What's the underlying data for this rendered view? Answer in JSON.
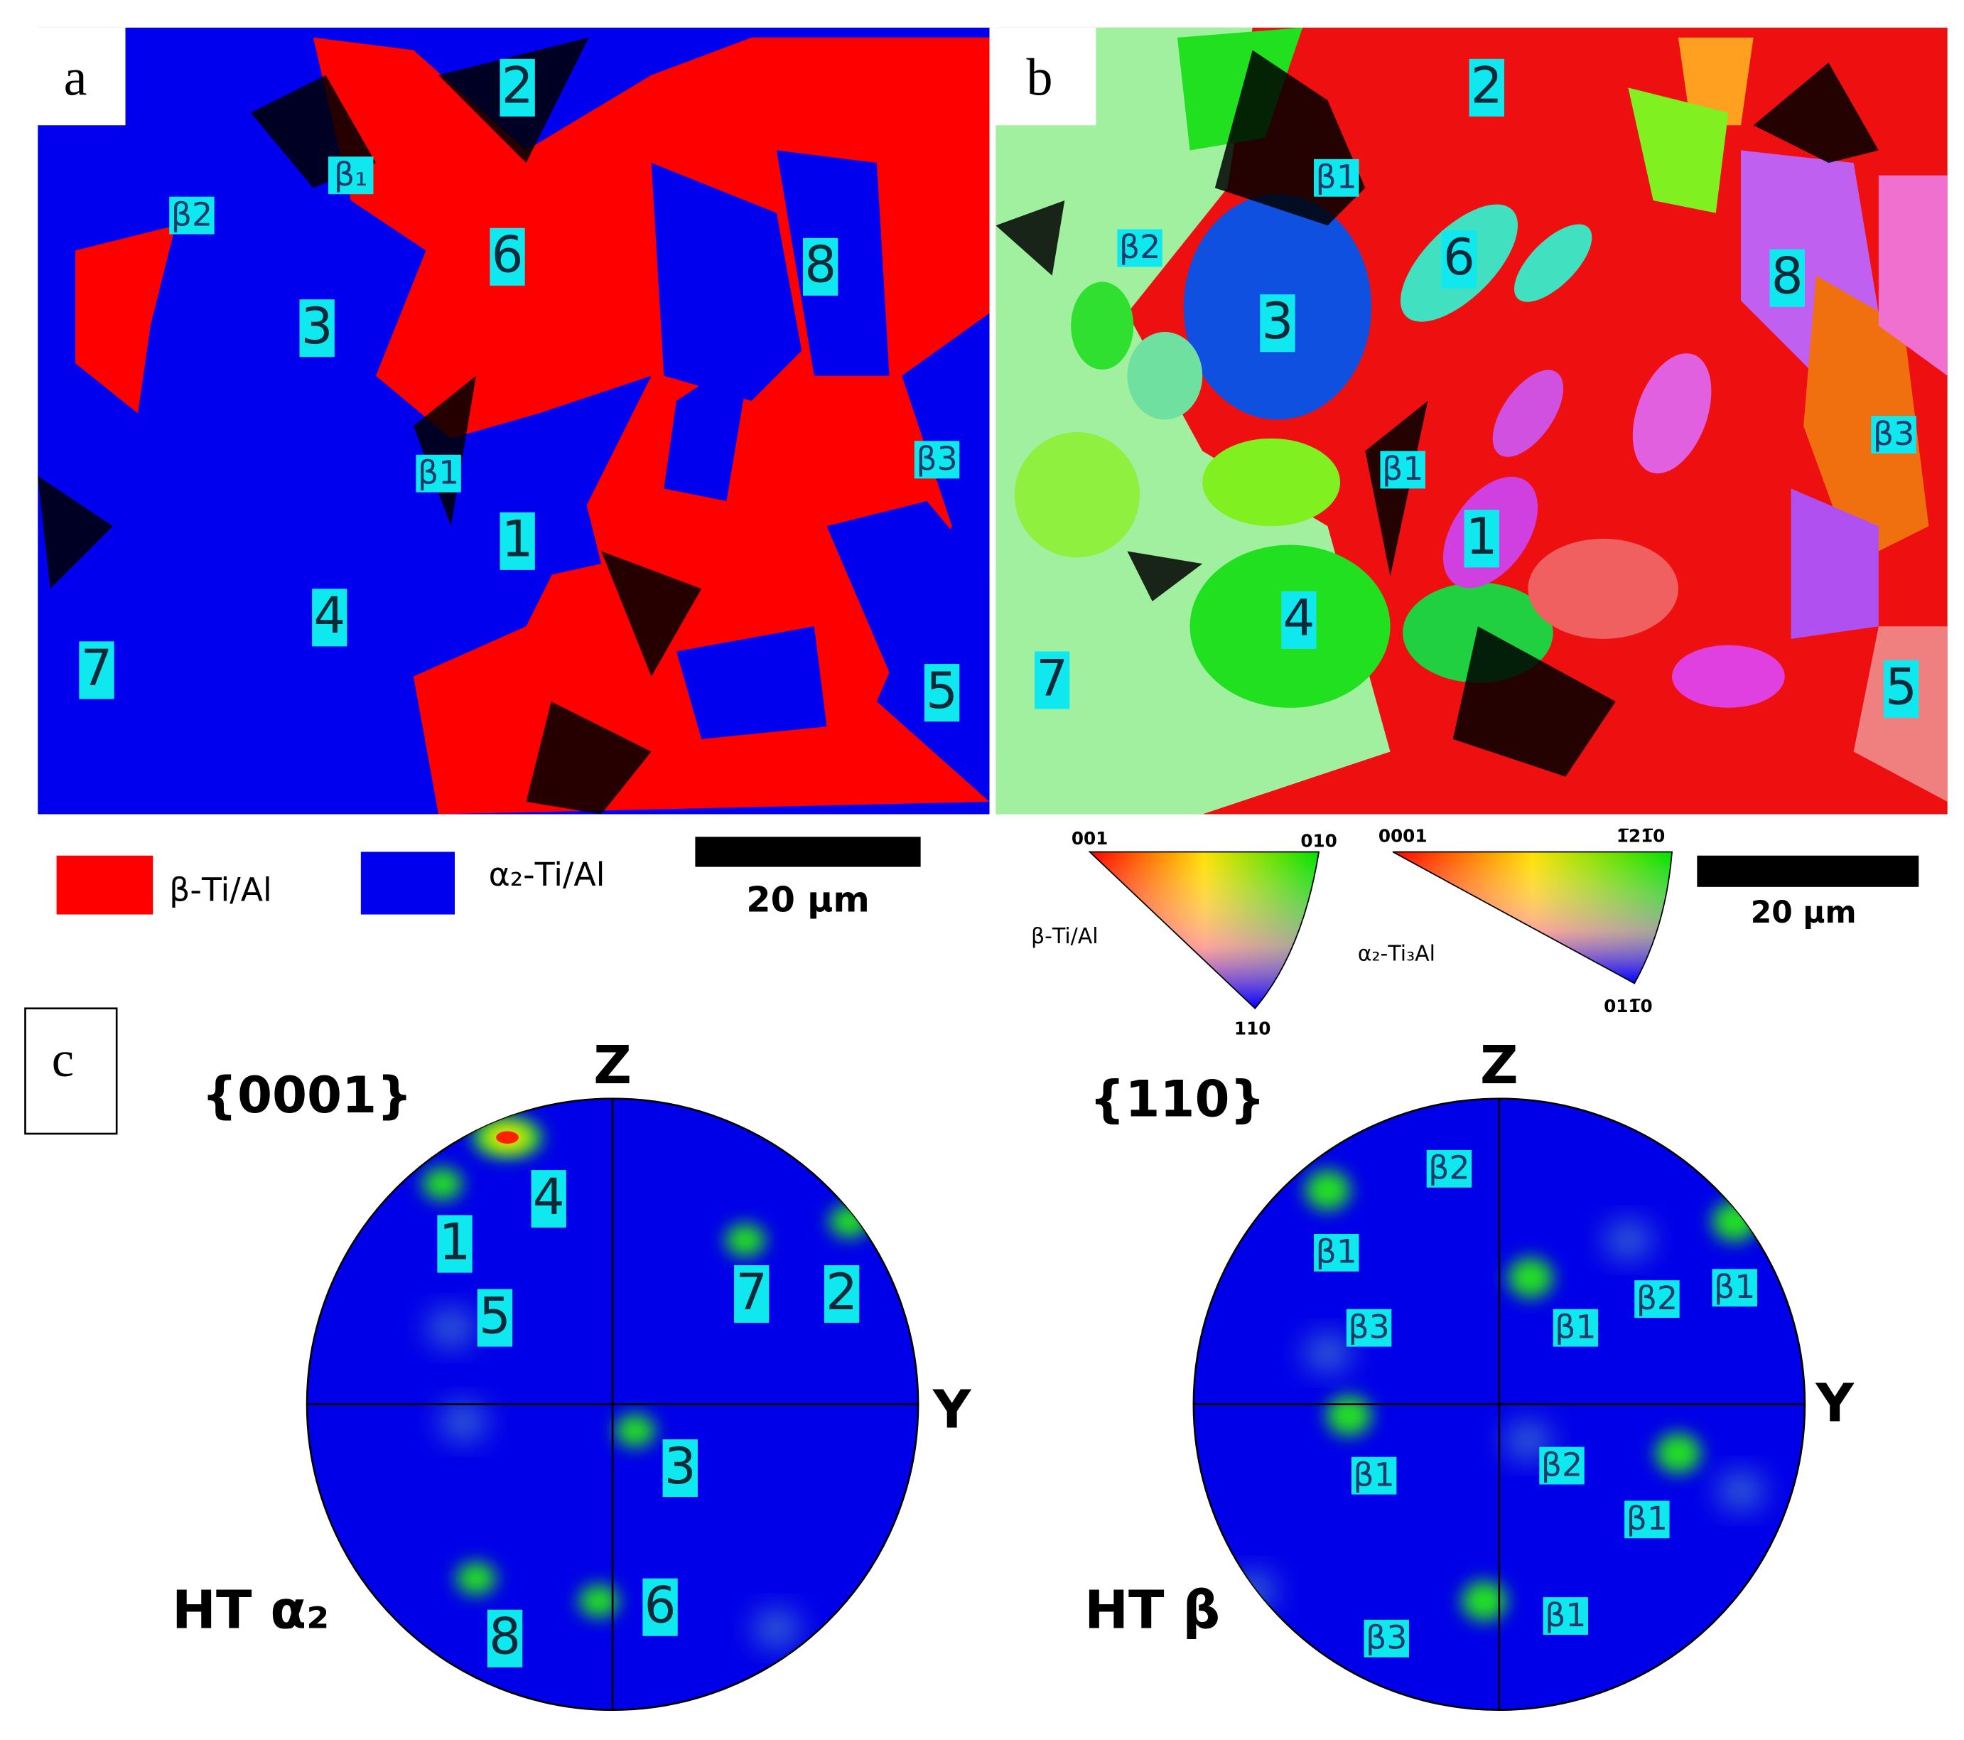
{
  "panel_a": {
    "label": "a",
    "grain_labels": [
      "2",
      "β₁",
      "β2",
      "6",
      "3",
      "8",
      "β1",
      "β3",
      "1",
      "4",
      "7",
      "5"
    ],
    "legend": [
      "β-Ti/Al",
      "α₂-Ti/Al"
    ],
    "scale_bar": "20 μm"
  },
  "panel_b": {
    "label": "b",
    "grain_labels": [
      "2",
      "β1",
      "6",
      "β2",
      "3",
      "8",
      "β3",
      "β1",
      "1",
      "4",
      "7",
      "5"
    ],
    "key_beta": {
      "name": "β-Ti/Al",
      "corners": [
        "001",
        "010",
        "110"
      ]
    },
    "key_alpha": {
      "name": "α₂-Ti₃Al",
      "corners": [
        "0001",
        "1̅21̅0",
        "011̅0"
      ]
    },
    "scale_bar": "20 μm"
  },
  "panel_c": {
    "label": "c",
    "pole_figures": [
      {
        "plane": "{0001}",
        "axis_top": "Z",
        "axis_right": "Y",
        "phase": "HT α₂",
        "grain_labels": [
          "4",
          "1",
          "5",
          "7",
          "2",
          "3",
          "8",
          "6"
        ]
      },
      {
        "plane": "{110}",
        "axis_top": "Z",
        "axis_right": "Y",
        "phase": "HT β",
        "grain_labels": [
          "β2",
          "β1",
          "β3",
          "β1",
          "β2",
          "β1",
          "β1",
          "β2",
          "β1",
          "β1",
          "β3"
        ]
      }
    ]
  }
}
